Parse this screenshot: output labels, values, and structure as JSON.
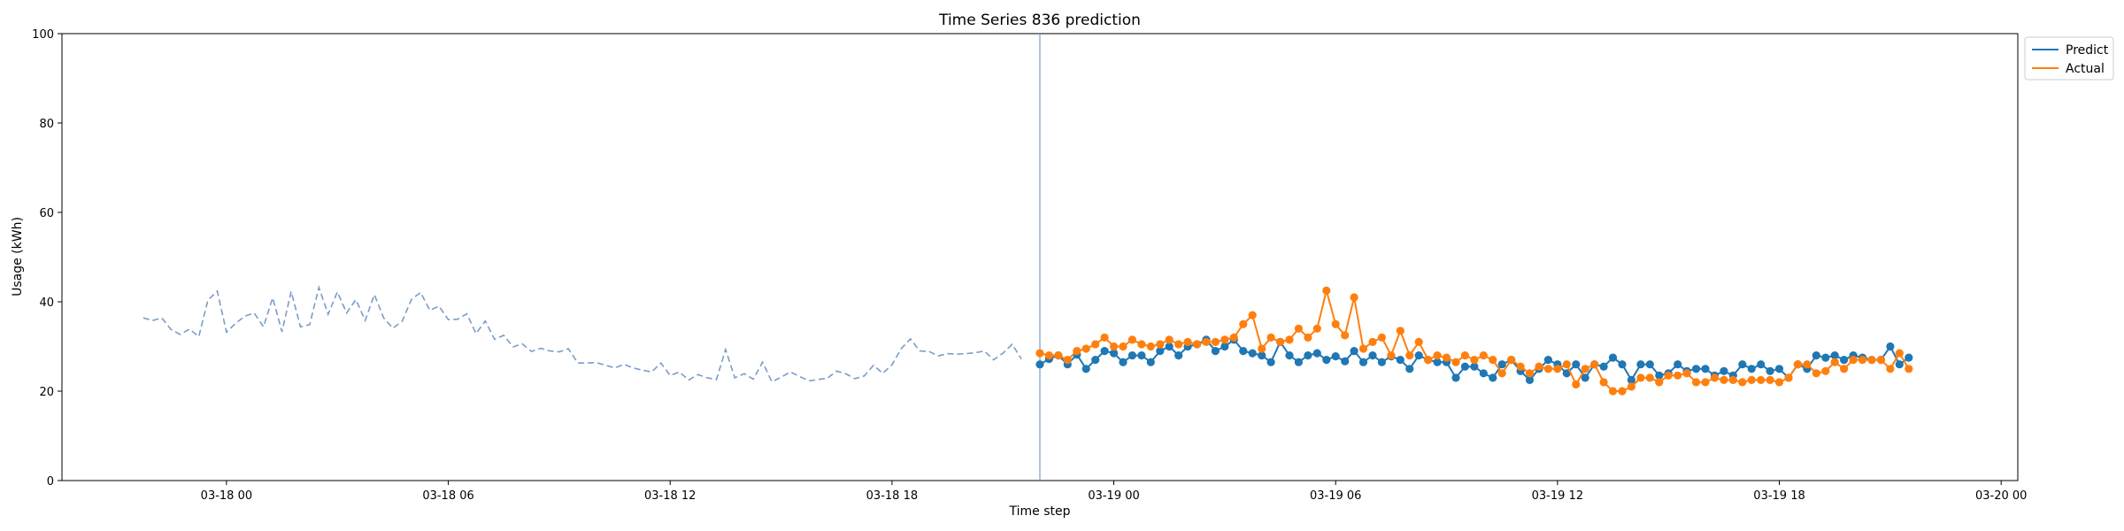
{
  "chart_data": {
    "type": "line",
    "title": "Time Series 836 prediction",
    "xlabel": "Time step",
    "ylabel": "Usage (kWh)",
    "ylim": [
      0,
      100
    ],
    "yticks": [
      0,
      20,
      40,
      60,
      80,
      100
    ],
    "xlim": [
      "2024-03-17 19:33",
      "2024-03-20 00:27"
    ],
    "xticks": [
      {
        "t": "2024-03-18 00:00",
        "label": "03-18 00"
      },
      {
        "t": "2024-03-18 06:00",
        "label": "03-18 06"
      },
      {
        "t": "2024-03-18 12:00",
        "label": "03-18 12"
      },
      {
        "t": "2024-03-18 18:00",
        "label": "03-18 18"
      },
      {
        "t": "2024-03-19 00:00",
        "label": "03-19 00"
      },
      {
        "t": "2024-03-19 06:00",
        "label": "03-19 06"
      },
      {
        "t": "2024-03-19 12:00",
        "label": "03-19 12"
      },
      {
        "t": "2024-03-19 18:00",
        "label": "03-19 18"
      },
      {
        "t": "2024-03-20 00:00",
        "label": "03-20 00"
      }
    ],
    "split_time": "2024-03-18 22:00",
    "history": {
      "start": "2024-03-17 21:45",
      "step_minutes": 15,
      "values": [
        36.4,
        35.8,
        36.4,
        33.8,
        32.7,
        33.9,
        32.2,
        40.4,
        42.4,
        33.2,
        35.2,
        36.8,
        37.5,
        34.4,
        40.9,
        33.3,
        42.3,
        34.4,
        34.9,
        43.2,
        37.2,
        42.2,
        37.5,
        40.5,
        35.8,
        41.6,
        36.4,
        34.1,
        35.6,
        40.5,
        42.1,
        38.1,
        39.0,
        36.0,
        36.1,
        37.3,
        32.9,
        35.7,
        31.6,
        32.5,
        29.9,
        30.6,
        28.9,
        29.6,
        29.0,
        28.8,
        29.5,
        26.3,
        26.3,
        26.4,
        25.8,
        25.2,
        26.0,
        25.2,
        24.7,
        24.3,
        26.3,
        23.5,
        24.3,
        22.5,
        23.7,
        23.0,
        22.6,
        29.3,
        23.0,
        23.9,
        22.7,
        26.5,
        22.1,
        23.1,
        24.3,
        23.3,
        22.3,
        22.6,
        22.9,
        24.5,
        23.9,
        22.8,
        23.4,
        25.8,
        24.0,
        25.9,
        29.5,
        31.7,
        29.0,
        28.9,
        27.9,
        28.4,
        28.3,
        28.4,
        28.6,
        29.0,
        27.0,
        28.5,
        30.5,
        27.2
      ]
    },
    "series": [
      {
        "name": "Predict",
        "color": "#1f77b4",
        "start": "2024-03-18 22:00",
        "step_minutes": 15,
        "values": [
          26.0,
          27.2,
          28.0,
          26.0,
          28.2,
          25.0,
          27.0,
          29.0,
          28.5,
          26.5,
          28.0,
          28.0,
          26.5,
          29.0,
          30.0,
          28.0,
          30.0,
          30.5,
          31.5,
          29.0,
          30.0,
          31.5,
          29.0,
          28.5,
          28.0,
          26.5,
          31.0,
          28.0,
          26.5,
          28.0,
          28.5,
          27.0,
          27.8,
          26.7,
          29.0,
          26.5,
          28.0,
          26.5,
          27.8,
          27.0,
          25.0,
          28.0,
          27.0,
          26.5,
          26.5,
          23.0,
          25.5,
          25.5,
          24.0,
          23.0,
          26.0,
          27.0,
          24.5,
          22.5,
          25.0,
          27.0,
          26.0,
          24.0,
          26.0,
          23.0,
          26.0,
          25.5,
          27.5,
          26.0,
          22.5,
          26.0,
          26.0,
          23.5,
          24.0,
          26.0,
          24.5,
          25.0,
          25.0,
          23.5,
          24.5,
          23.5,
          26.0,
          25.0,
          26.0,
          24.5,
          25.0,
          23.0,
          26.0,
          25.0,
          28.0,
          27.5,
          28.0,
          27.0,
          28.0,
          27.5,
          27.0,
          27.0,
          30.0,
          26.0,
          27.5
        ]
      },
      {
        "name": "Actual",
        "color": "#ff7f0e",
        "start": "2024-03-18 22:00",
        "step_minutes": 15,
        "values": [
          28.5,
          28.0,
          28.0,
          27.0,
          29.0,
          29.5,
          30.5,
          32.0,
          30.0,
          30.0,
          31.5,
          30.5,
          30.0,
          30.5,
          31.5,
          30.5,
          31.0,
          30.5,
          31.0,
          31.0,
          31.5,
          32.0,
          35.0,
          37.0,
          29.5,
          32.0,
          31.0,
          31.5,
          34.0,
          32.0,
          34.0,
          42.5,
          35.0,
          32.5,
          41.0,
          29.5,
          31.0,
          32.0,
          28.0,
          33.5,
          28.0,
          31.0,
          27.0,
          28.0,
          27.5,
          26.5,
          28.0,
          27.0,
          28.0,
          27.0,
          24.0,
          27.0,
          25.5,
          24.0,
          25.5,
          25.0,
          25.0,
          26.0,
          21.5,
          25.0,
          26.0,
          22.0,
          20.0,
          20.0,
          21.0,
          23.0,
          23.0,
          22.0,
          23.5,
          23.5,
          24.0,
          22.0,
          22.0,
          23.0,
          22.5,
          22.5,
          22.0,
          22.5,
          22.5,
          22.5,
          22.0,
          23.0,
          26.0,
          26.0,
          24.0,
          24.5,
          26.5,
          25.0,
          27.0,
          27.0,
          27.0,
          27.0,
          25.0,
          28.5,
          25.0
        ]
      }
    ],
    "legend": {
      "position": "upper right, outside plot",
      "entries": [
        "Predict",
        "Actual"
      ]
    },
    "history_style": {
      "color": "#7a9cc9",
      "dash": "dashed"
    },
    "split_line_color": "#7a9cc9",
    "grid": false
  }
}
